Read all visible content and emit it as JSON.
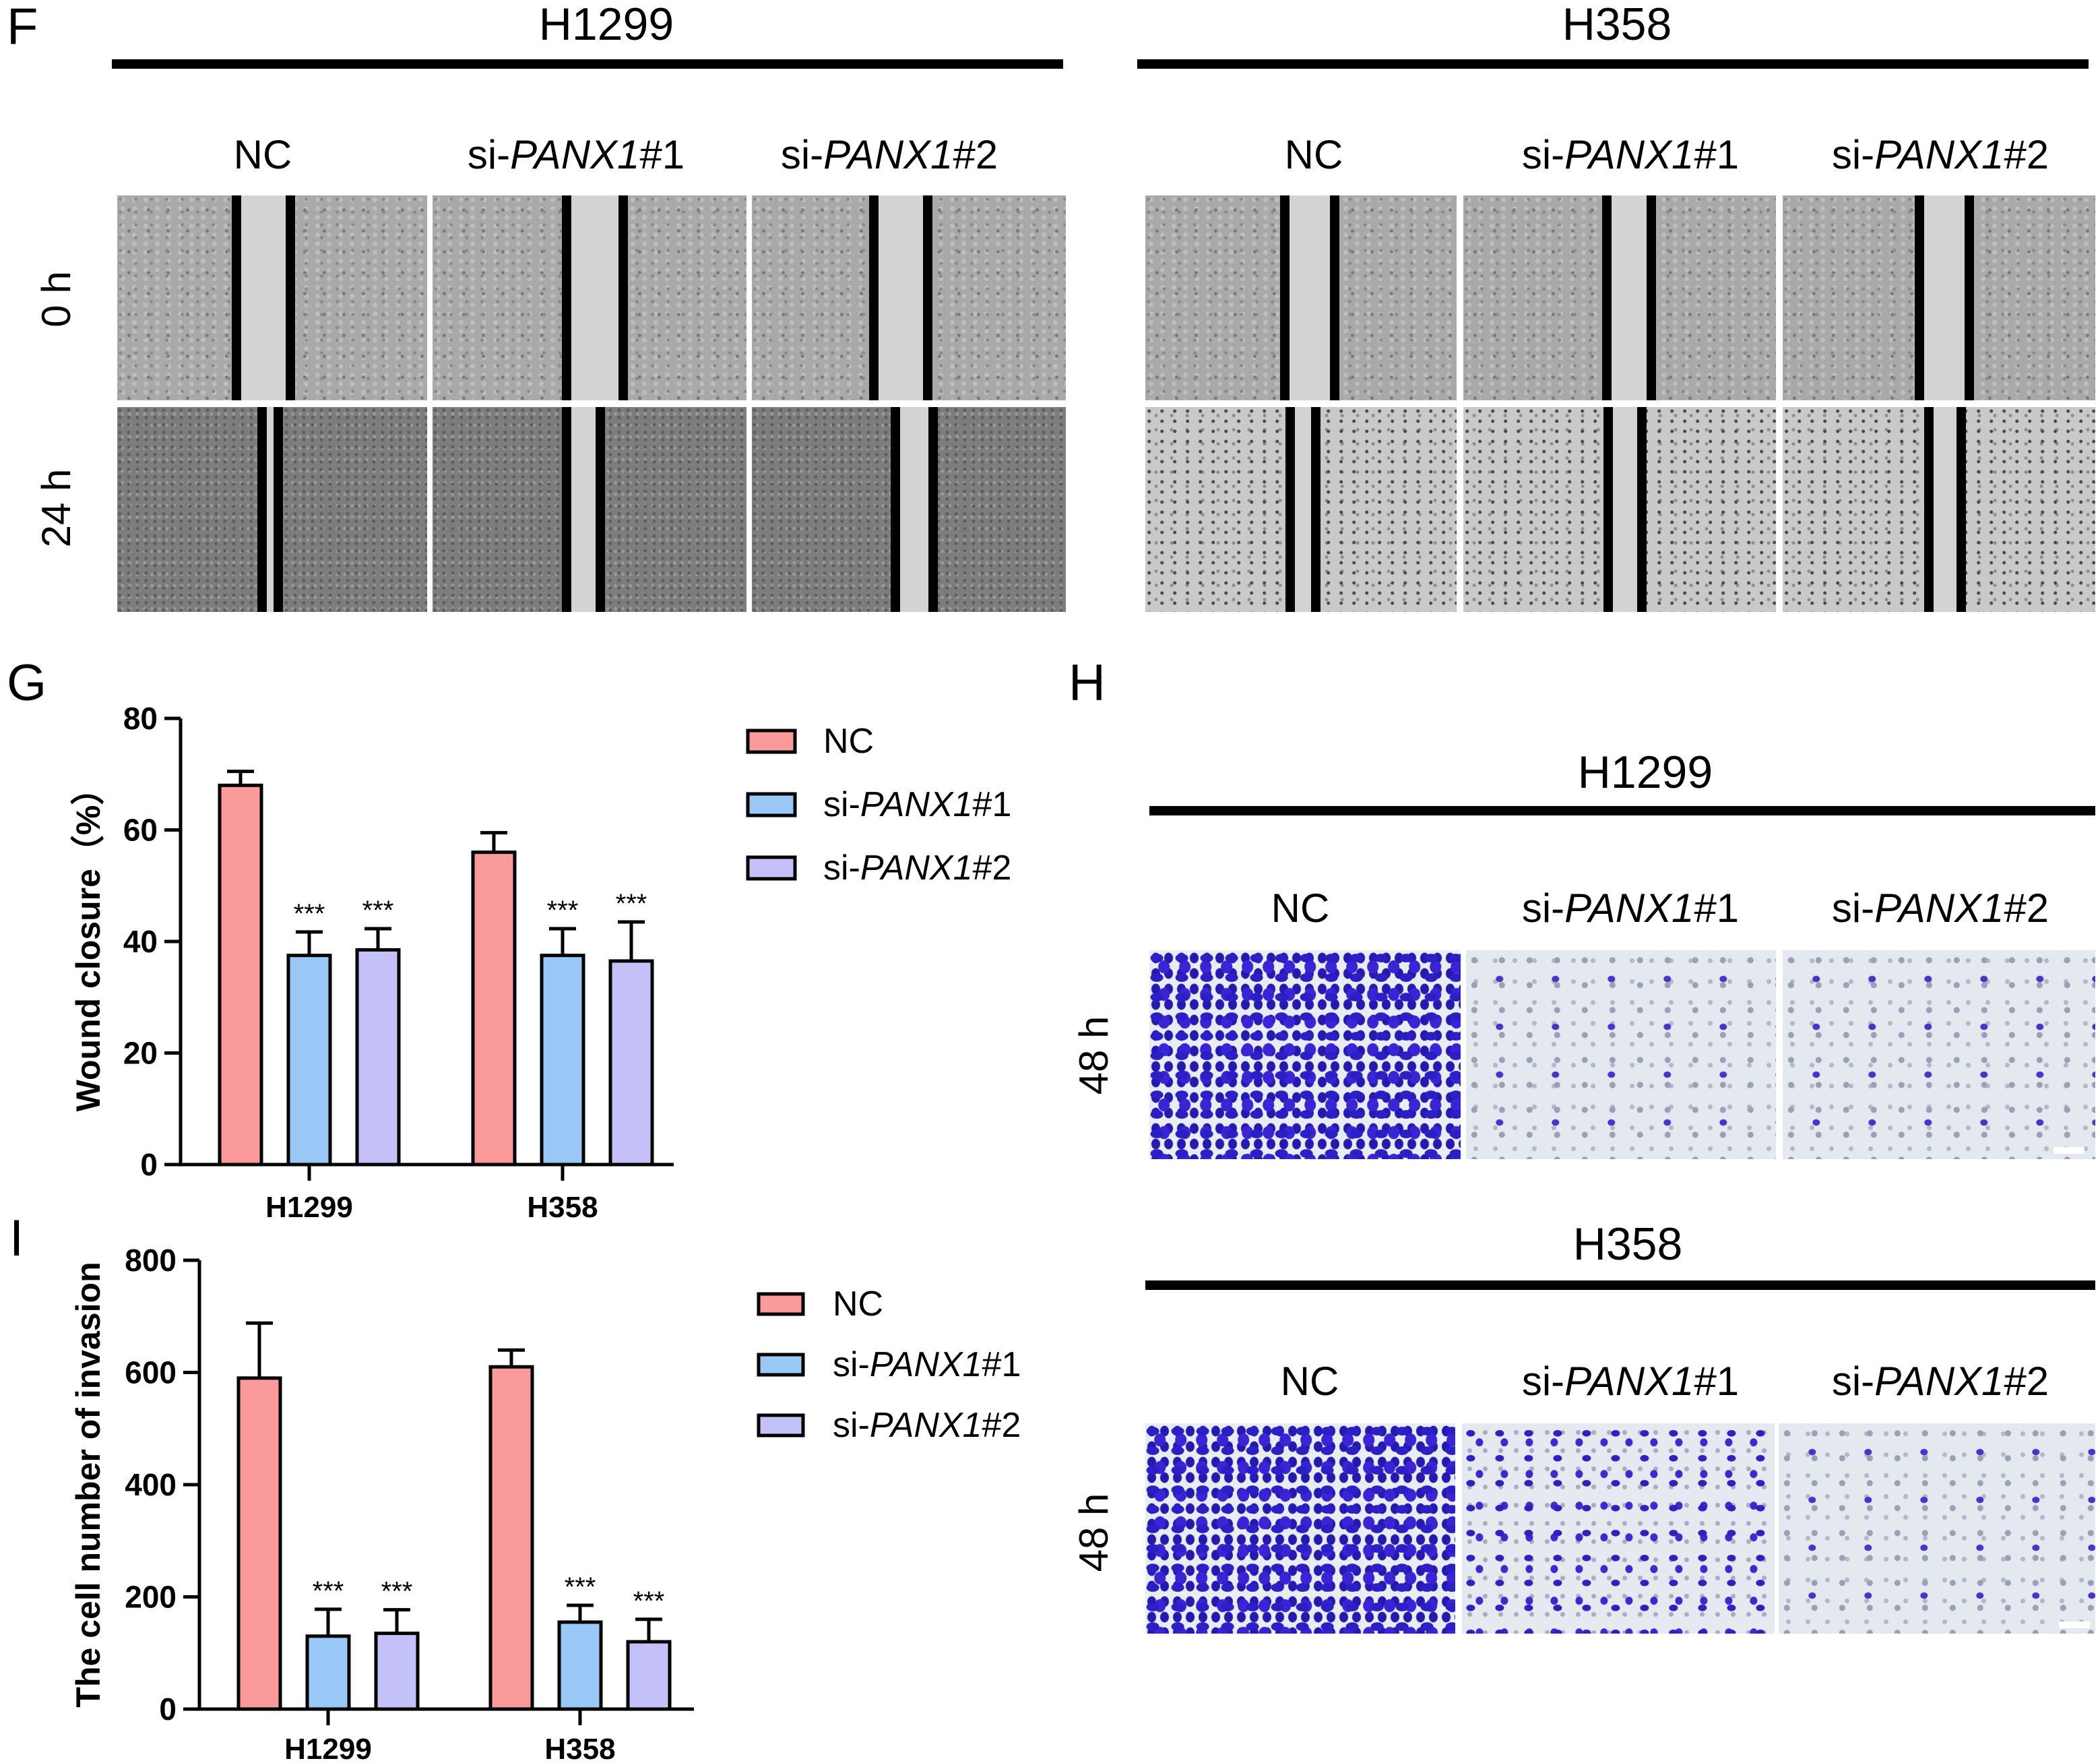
{
  "panels": {
    "F": "F",
    "G": "G",
    "H": "H",
    "I": "I"
  },
  "panelF": {
    "groups": [
      {
        "title": "H1299",
        "conditions": [
          {
            "prefix": "",
            "italic": "",
            "suffix": "NC"
          },
          {
            "prefix": "si-",
            "italic": "PANX1",
            "suffix": "#1"
          },
          {
            "prefix": "si-",
            "italic": "PANX1",
            "suffix": "#2"
          }
        ]
      },
      {
        "title": "H358",
        "conditions": [
          {
            "prefix": "",
            "italic": "",
            "suffix": "NC"
          },
          {
            "prefix": "si-",
            "italic": "PANX1",
            "suffix": "#1"
          },
          {
            "prefix": "si-",
            "italic": "PANX1",
            "suffix": "#2"
          }
        ]
      }
    ],
    "rows": [
      "0 h",
      "24 h"
    ]
  },
  "panelH": {
    "groups": [
      {
        "title": "H1299",
        "conditions": [
          {
            "prefix": "",
            "italic": "",
            "suffix": "NC"
          },
          {
            "prefix": "si-",
            "italic": "PANX1",
            "suffix": "#1"
          },
          {
            "prefix": "si-",
            "italic": "PANX1",
            "suffix": "#2"
          }
        ],
        "row": "48 h"
      },
      {
        "title": "H358",
        "conditions": [
          {
            "prefix": "",
            "italic": "",
            "suffix": "NC"
          },
          {
            "prefix": "si-",
            "italic": "PANX1",
            "suffix": "#1"
          },
          {
            "prefix": "si-",
            "italic": "PANX1",
            "suffix": "#2"
          }
        ],
        "row": "48 h"
      }
    ]
  },
  "legend": {
    "entries": [
      {
        "prefix": "",
        "italic": "",
        "suffix": "NC",
        "color": "#fa9a9a"
      },
      {
        "prefix": "si-",
        "italic": "PANX1",
        "suffix": "#1",
        "color": "#9ac8f6"
      },
      {
        "prefix": "si-",
        "italic": "PANX1",
        "suffix": "#2",
        "color": "#c4c1f8"
      }
    ]
  },
  "chart_data": [
    {
      "id": "G",
      "type": "bar",
      "ylabel": "Wound closure（%）",
      "ylim": [
        0,
        80
      ],
      "yticks": [
        0,
        20,
        40,
        60,
        80
      ],
      "categories": [
        "H1299",
        "H358"
      ],
      "series": [
        {
          "name": "NC",
          "values": [
            68,
            56
          ],
          "errors": [
            2.5,
            3.5
          ],
          "sig": [
            "",
            ""
          ]
        },
        {
          "name": "si-PANX1#1",
          "values": [
            37.5,
            37.5
          ],
          "errors": [
            4.2,
            4.8
          ],
          "sig": [
            "***",
            "***"
          ]
        },
        {
          "name": "si-PANX1#2",
          "values": [
            38.5,
            36.5
          ],
          "errors": [
            3.8,
            7.0
          ],
          "sig": [
            "***",
            "***"
          ]
        }
      ],
      "legend_position": "right"
    },
    {
      "id": "I",
      "type": "bar",
      "ylabel": "The cell number of invasion",
      "ylim": [
        0,
        800
      ],
      "yticks": [
        0,
        200,
        400,
        600,
        800
      ],
      "categories": [
        "H1299",
        "H358"
      ],
      "series": [
        {
          "name": "NC",
          "values": [
            590,
            610
          ],
          "errors": [
            98,
            30
          ],
          "sig": [
            "",
            ""
          ]
        },
        {
          "name": "si-PANX1#1",
          "values": [
            130,
            155
          ],
          "errors": [
            48,
            30
          ],
          "sig": [
            "***",
            "***"
          ]
        },
        {
          "name": "si-PANX1#2",
          "values": [
            135,
            120
          ],
          "errors": [
            42,
            40
          ],
          "sig": [
            "***",
            "***"
          ]
        }
      ],
      "legend_position": "right"
    }
  ]
}
